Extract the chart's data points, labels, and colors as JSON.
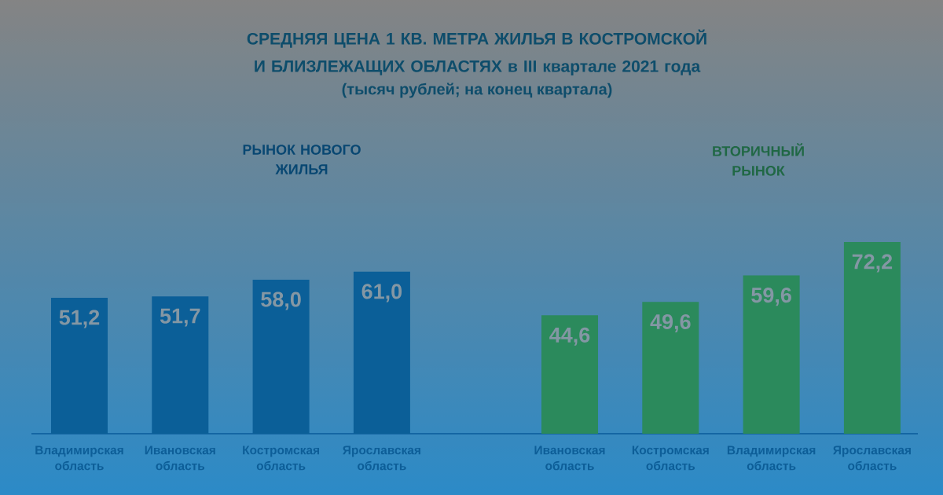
{
  "chart_data": [
    {
      "type": "bar",
      "title": "СРЕДНЯЯ ЦЕНА 1 КВ. МЕТРА ЖИЛЬЯ В КОСТРОМСКОЙ И БЛИЗЛЕЖАЩИХ ОБЛАСТЯХ в III квартале 2021 года",
      "subtitle": "(тысяч рублей; на конец квартала)",
      "categories": [
        "Владимирская область",
        "Ивановская область",
        "Костромская область",
        "Ярославская область"
      ],
      "series": [
        {
          "name": "РЫНОК НОВОГО ЖИЛЬЯ",
          "color": "#0b5f98",
          "values": [
            51.2,
            51.7,
            58.0,
            61.0
          ],
          "value_labels": [
            "51,2",
            "51,7",
            "58,0",
            "61,0"
          ]
        }
      ],
      "tick_labels": "x"
    },
    {
      "type": "bar",
      "categories": [
        "Ивановская область",
        "Костромская область",
        "Владимирская область",
        "Ярославская область"
      ],
      "series": [
        {
          "name": "ВТОРИЧНЫЙ РЫНОК",
          "color": "#2b8a5c",
          "values": [
            44.6,
            49.6,
            59.6,
            72.2
          ],
          "value_labels": [
            "44,6",
            "49,6",
            "59,6",
            "72,2"
          ]
        }
      ],
      "tick_labels": "x"
    }
  ]
}
